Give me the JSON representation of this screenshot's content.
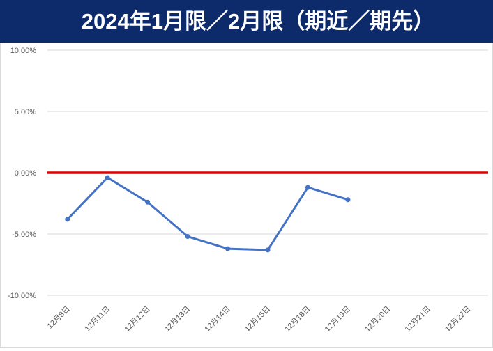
{
  "chart_data": {
    "type": "line",
    "title": "2024年1月限／2月限（期近／期先）",
    "categories": [
      "12月8日",
      "12月11日",
      "12月12日",
      "12月13日",
      "12月14日",
      "12月15日",
      "12月18日",
      "12月19日",
      "12月20日",
      "12月21日",
      "12月22日"
    ],
    "series": [
      {
        "color": "#4472c4",
        "values": [
          -3.8,
          -0.4,
          -2.4,
          -5.2,
          -6.2,
          -6.3,
          -1.2,
          -2.2,
          null,
          null,
          null
        ]
      }
    ],
    "ylim": [
      -10,
      10
    ],
    "yticks": [
      {
        "value": -10,
        "label": "-10.00%"
      },
      {
        "value": -5,
        "label": "-5.00%"
      },
      {
        "value": 0,
        "label": "0.00%"
      },
      {
        "value": 5,
        "label": "5.00%"
      },
      {
        "value": 10,
        "label": "10.00%"
      }
    ],
    "grid": true,
    "reference_line": {
      "value": 0,
      "color": "#e00000"
    }
  }
}
